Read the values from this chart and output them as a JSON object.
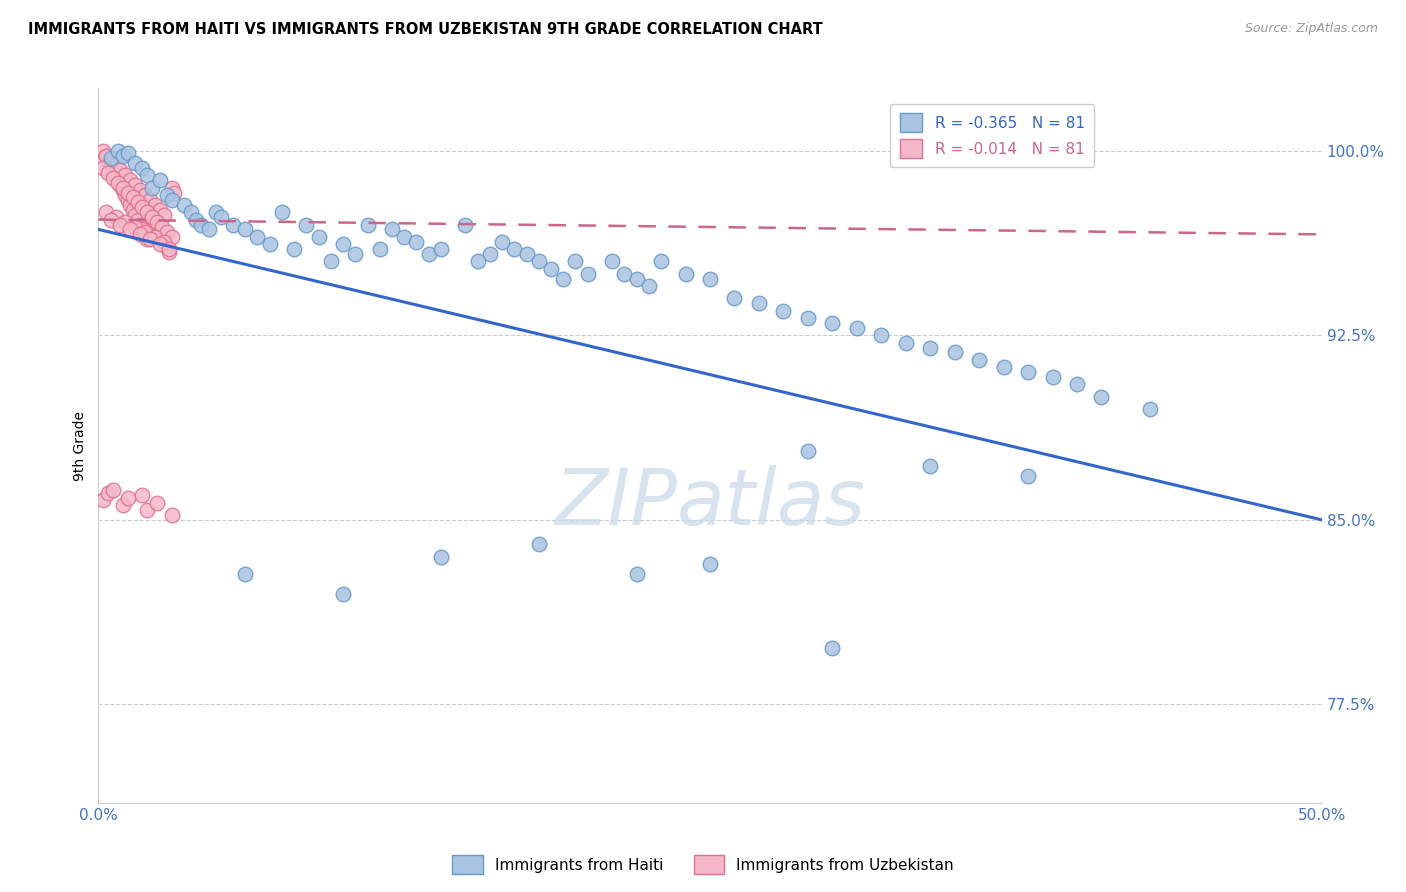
{
  "title": "IMMIGRANTS FROM HAITI VS IMMIGRANTS FROM UZBEKISTAN 9TH GRADE CORRELATION CHART",
  "source": "Source: ZipAtlas.com",
  "ylabel": "9th Grade",
  "xlim": [
    0.0,
    0.5
  ],
  "ylim": [
    0.735,
    1.025
  ],
  "y_ticks": [
    0.775,
    0.85,
    0.925,
    1.0
  ],
  "y_tick_labels": [
    "77.5%",
    "85.0%",
    "92.5%",
    "100.0%"
  ],
  "legend_haiti_label": "R = -0.365   N = 81",
  "legend_uzbekistan_label": "R = -0.014   N = 81",
  "legend_bottom_haiti": "Immigrants from Haiti",
  "legend_bottom_uzbekistan": "Immigrants from Uzbekistan",
  "haiti_color": "#a8c4e0",
  "haiti_edge_color": "#6699cc",
  "uzbekistan_color": "#f4b8c8",
  "uzbekistan_edge_color": "#e07090",
  "trendline_haiti_color": "#3366cc",
  "trendline_uzbekistan_color": "#cc6688",
  "watermark_text": "ZIPatlas",
  "watermark_color": "#c8d8ea",
  "haiti_trend_x0": 0.0,
  "haiti_trend_y0": 0.968,
  "haiti_trend_x1": 0.5,
  "haiti_trend_y1": 0.85,
  "uzb_trend_x0": 0.0,
  "uzb_trend_y0": 0.972,
  "uzb_trend_x1": 0.5,
  "uzb_trend_y1": 0.966,
  "haiti_scatter_x": [
    0.005,
    0.008,
    0.01,
    0.012,
    0.015,
    0.018,
    0.02,
    0.022,
    0.025,
    0.028,
    0.03,
    0.035,
    0.038,
    0.04,
    0.042,
    0.045,
    0.048,
    0.05,
    0.055,
    0.06,
    0.065,
    0.07,
    0.075,
    0.08,
    0.085,
    0.09,
    0.095,
    0.1,
    0.105,
    0.11,
    0.115,
    0.12,
    0.125,
    0.13,
    0.135,
    0.14,
    0.15,
    0.155,
    0.16,
    0.165,
    0.17,
    0.175,
    0.18,
    0.185,
    0.19,
    0.195,
    0.2,
    0.21,
    0.215,
    0.22,
    0.225,
    0.23,
    0.24,
    0.25,
    0.26,
    0.27,
    0.28,
    0.29,
    0.3,
    0.31,
    0.32,
    0.33,
    0.34,
    0.35,
    0.36,
    0.37,
    0.38,
    0.39,
    0.4,
    0.41,
    0.43,
    0.29,
    0.34,
    0.38,
    0.06,
    0.1,
    0.14,
    0.18,
    0.22,
    0.25,
    0.3
  ],
  "haiti_scatter_y": [
    0.997,
    1.0,
    0.998,
    0.999,
    0.995,
    0.993,
    0.99,
    0.985,
    0.988,
    0.982,
    0.98,
    0.978,
    0.975,
    0.972,
    0.97,
    0.968,
    0.975,
    0.973,
    0.97,
    0.968,
    0.965,
    0.962,
    0.975,
    0.96,
    0.97,
    0.965,
    0.955,
    0.962,
    0.958,
    0.97,
    0.96,
    0.968,
    0.965,
    0.963,
    0.958,
    0.96,
    0.97,
    0.955,
    0.958,
    0.963,
    0.96,
    0.958,
    0.955,
    0.952,
    0.948,
    0.955,
    0.95,
    0.955,
    0.95,
    0.948,
    0.945,
    0.955,
    0.95,
    0.948,
    0.94,
    0.938,
    0.935,
    0.932,
    0.93,
    0.928,
    0.925,
    0.922,
    0.92,
    0.918,
    0.915,
    0.912,
    0.91,
    0.908,
    0.905,
    0.9,
    0.895,
    0.878,
    0.872,
    0.868,
    0.828,
    0.82,
    0.835,
    0.84,
    0.828,
    0.832,
    0.798
  ],
  "uzbekistan_scatter_x": [
    0.002,
    0.003,
    0.004,
    0.005,
    0.006,
    0.007,
    0.008,
    0.009,
    0.01,
    0.011,
    0.012,
    0.013,
    0.014,
    0.015,
    0.016,
    0.017,
    0.018,
    0.019,
    0.02,
    0.021,
    0.022,
    0.023,
    0.024,
    0.025,
    0.026,
    0.027,
    0.028,
    0.029,
    0.03,
    0.031,
    0.003,
    0.005,
    0.007,
    0.009,
    0.011,
    0.013,
    0.015,
    0.017,
    0.019,
    0.021,
    0.023,
    0.025,
    0.027,
    0.002,
    0.004,
    0.006,
    0.008,
    0.01,
    0.012,
    0.014,
    0.016,
    0.018,
    0.02,
    0.022,
    0.024,
    0.026,
    0.028,
    0.03,
    0.003,
    0.007,
    0.011,
    0.015,
    0.019,
    0.023,
    0.027,
    0.005,
    0.009,
    0.013,
    0.017,
    0.021,
    0.025,
    0.029,
    0.002,
    0.01,
    0.02,
    0.03,
    0.004,
    0.012,
    0.024,
    0.006,
    0.018
  ],
  "uzbekistan_scatter_y": [
    1.0,
    0.998,
    0.996,
    0.994,
    0.992,
    0.99,
    0.988,
    0.986,
    0.984,
    0.982,
    0.98,
    0.978,
    0.976,
    0.974,
    0.972,
    0.97,
    0.968,
    0.966,
    0.964,
    0.975,
    0.973,
    0.971,
    0.969,
    0.967,
    0.965,
    0.963,
    0.961,
    0.959,
    0.985,
    0.983,
    0.998,
    0.996,
    0.994,
    0.992,
    0.99,
    0.988,
    0.986,
    0.984,
    0.982,
    0.98,
    0.978,
    0.976,
    0.974,
    0.993,
    0.991,
    0.989,
    0.987,
    0.985,
    0.983,
    0.981,
    0.979,
    0.977,
    0.975,
    0.973,
    0.971,
    0.969,
    0.967,
    0.965,
    0.975,
    0.973,
    0.971,
    0.969,
    0.967,
    0.965,
    0.963,
    0.972,
    0.97,
    0.968,
    0.966,
    0.964,
    0.962,
    0.96,
    0.858,
    0.856,
    0.854,
    0.852,
    0.861,
    0.859,
    0.857,
    0.862,
    0.86
  ]
}
